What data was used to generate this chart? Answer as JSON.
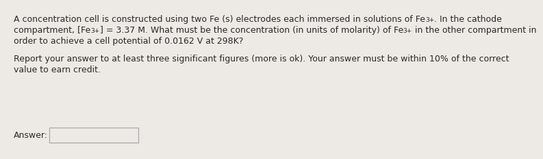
{
  "background_color": "#ede9e4",
  "text_color": "#2a2a2a",
  "font_size": 9.0,
  "super_font_size": 6.5,
  "font_family": "DejaVu Sans",
  "line1a": "A concentration cell is constructed using two Fe (s) electrodes each immersed in solutions of Fe",
  "line1_sup": "3+",
  "line1b": ". In the cathode",
  "line2a": "compartment, [Fe",
  "line2_sup1": "3+",
  "line2b": "] = 3.37 M. What must be the concentration (in units of molarity) of Fe",
  "line2_sup2": "3+",
  "line2c": " in the other compartment in",
  "line3": "order to achieve a cell potential of 0.0162 V at 298K?",
  "line4": "Report your answer to at least three significant figures (more is ok). Your answer must be within 10% of the correct",
  "line5": "value to earn credit.",
  "answer_label": "Answer:",
  "box_edge_color": "#aaaaaa",
  "box_face_color": "#ede9e4"
}
